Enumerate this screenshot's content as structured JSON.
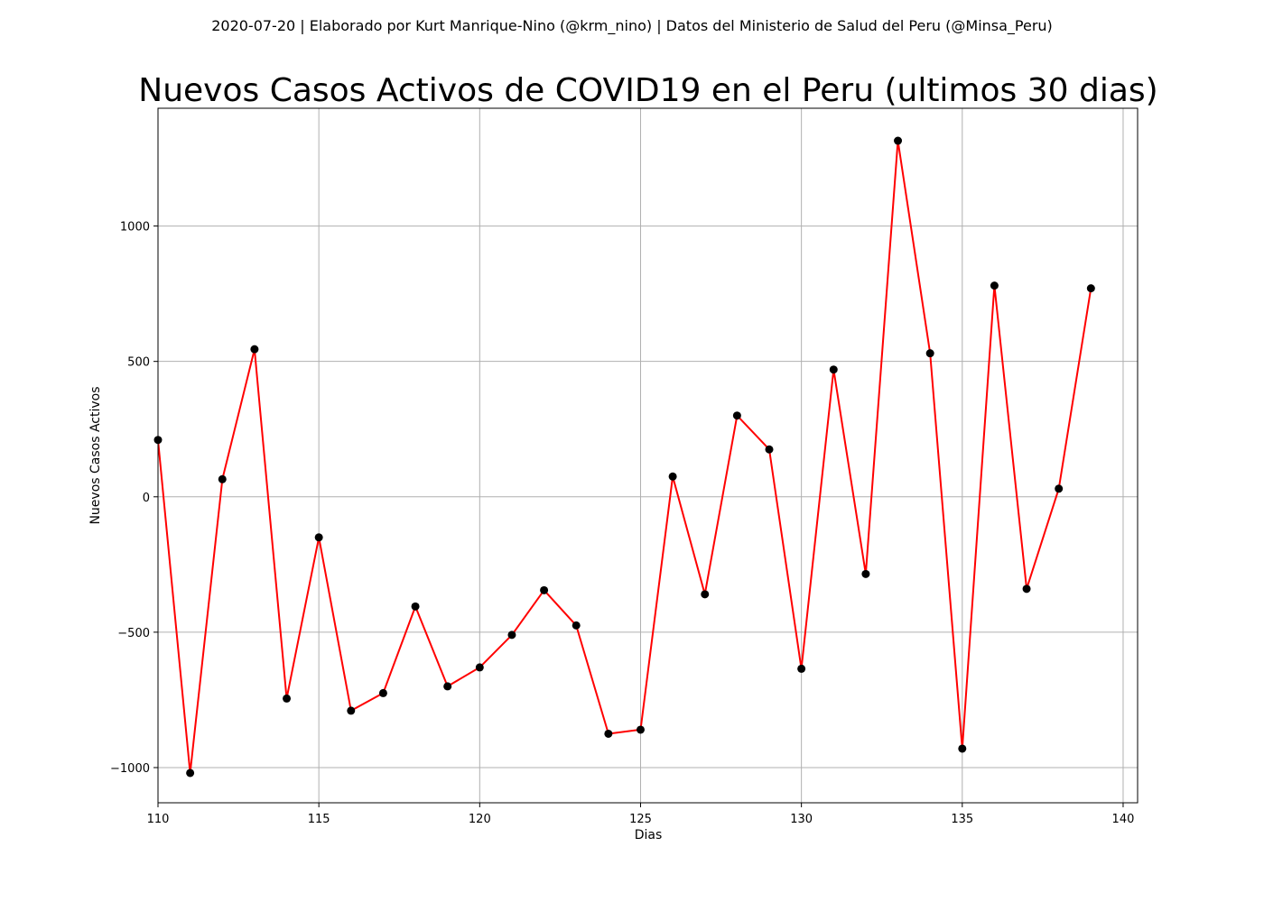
{
  "chart_data": {
    "type": "line",
    "suptitle": "2020-07-20 | Elaborado por Kurt Manrique-Nino (@krm_nino) | Datos del Ministerio de Salud del Peru (@Minsa_Peru)",
    "title": "Nuevos Casos Activos de COVID19 en el Peru (ultimos 30 dias)",
    "xlabel": "Dias",
    "ylabel": "Nuevos Casos Activos",
    "xlim": [
      110,
      140.45
    ],
    "ylim": [
      -1130,
      1435
    ],
    "xticks": [
      110,
      115,
      120,
      125,
      130,
      135,
      140
    ],
    "yticks": [
      -1000,
      -500,
      0,
      500,
      1000
    ],
    "grid": true,
    "colors": {
      "line": "#ff0000",
      "marker": "#000000",
      "grid": "#b0b0b0"
    },
    "series": [
      {
        "x": [
          110,
          111,
          112,
          113,
          114,
          115,
          116,
          117,
          118,
          119,
          120,
          121,
          122,
          123,
          124,
          125,
          126,
          127,
          128,
          129,
          130,
          131,
          132,
          133,
          134,
          135,
          136,
          137,
          138,
          139
        ],
        "values": [
          210,
          -1020,
          65,
          545,
          -745,
          -150,
          -790,
          -725,
          -405,
          -700,
          -630,
          -510,
          -345,
          -475,
          -875,
          -860,
          75,
          -360,
          300,
          175,
          -635,
          470,
          -285,
          1315,
          530,
          -930,
          780,
          -340,
          30,
          770
        ]
      }
    ]
  }
}
